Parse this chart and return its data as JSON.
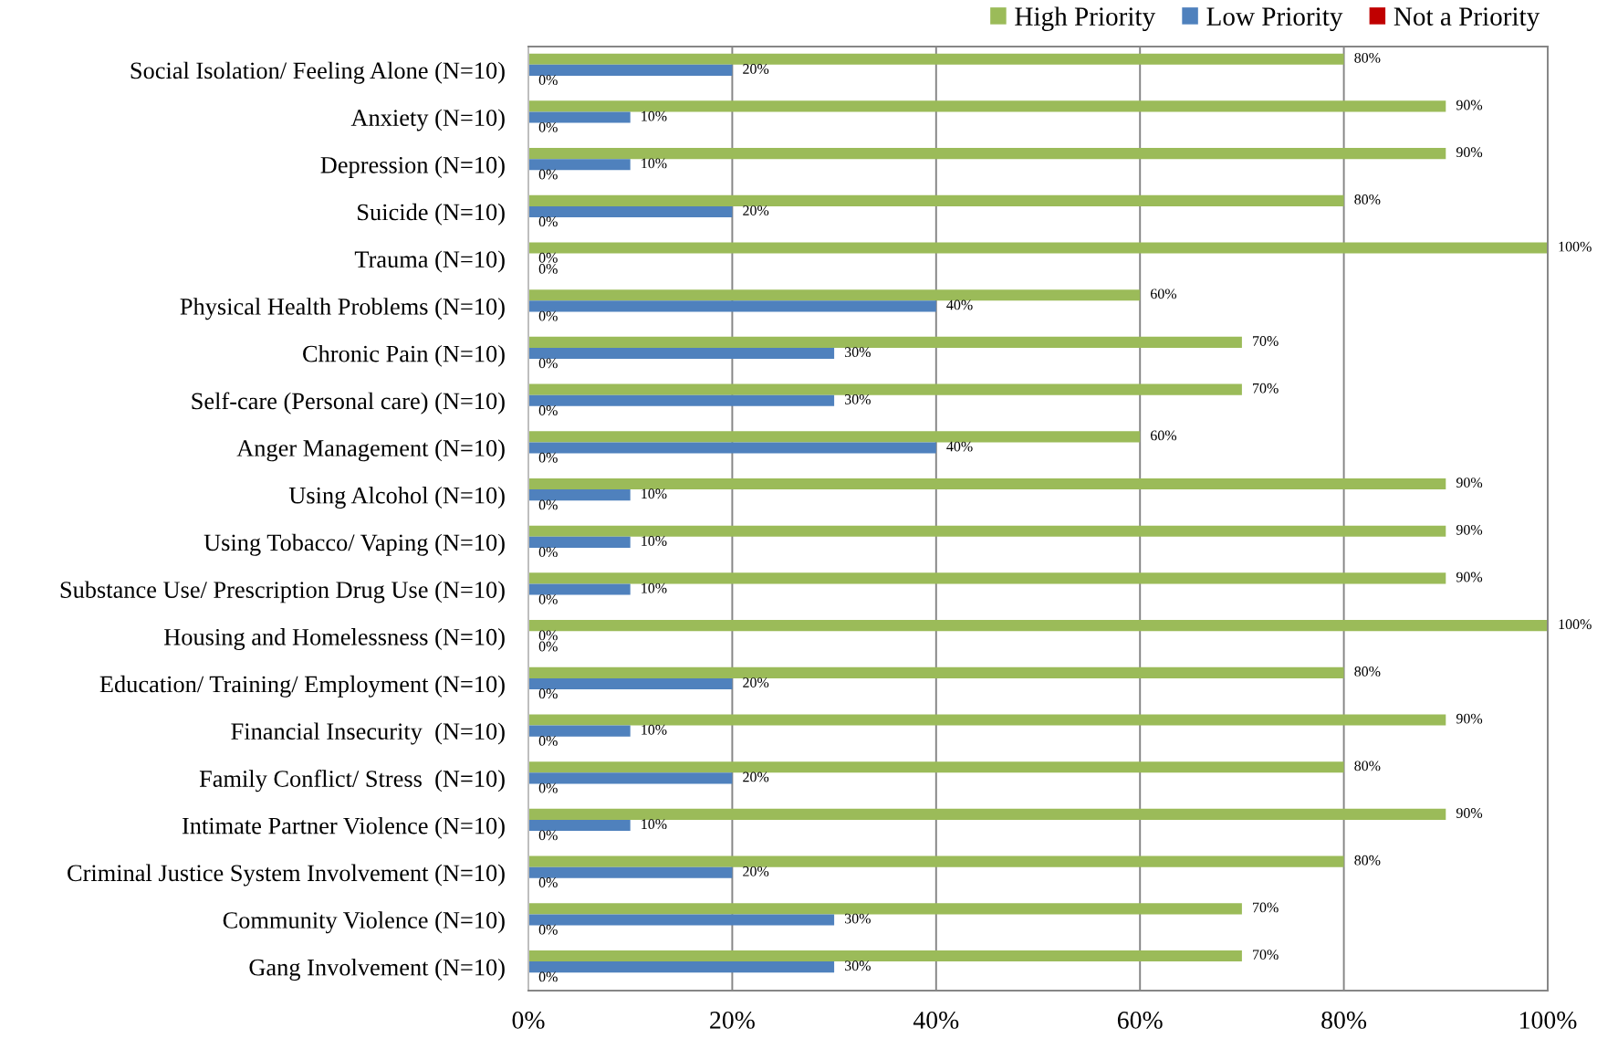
{
  "chart_data": {
    "type": "bar",
    "orientation": "horizontal",
    "categories": [
      "Social Isolation/ Feeling Alone (N=10)",
      "Anxiety (N=10)",
      "Depression (N=10)",
      "Suicide (N=10)",
      "Trauma (N=10)",
      "Physical Health Problems (N=10)",
      "Chronic Pain (N=10)",
      "Self-care (Personal care) (N=10)",
      "Anger Management (N=10)",
      "Using Alcohol (N=10)",
      "Using Tobacco/ Vaping (N=10)",
      "Substance Use/ Prescription Drug Use (N=10)",
      "Housing and Homelessness (N=10)",
      "Education/ Training/ Employment (N=10)",
      "Financial Insecurity  (N=10)",
      "Family Conflict/ Stress  (N=10)",
      "Intimate Partner Violence (N=10)",
      "Criminal Justice System Involvement (N=10)",
      "Community Violence (N=10)",
      "Gang Involvement (N=10)"
    ],
    "series": [
      {
        "name": "High Priority",
        "color": "#9bbb59",
        "values": [
          80,
          90,
          90,
          80,
          100,
          60,
          70,
          70,
          60,
          90,
          90,
          90,
          100,
          80,
          90,
          80,
          90,
          80,
          70,
          70
        ],
        "value_labels": [
          "80%",
          "90%",
          "90%",
          "80%",
          "100%",
          "60%",
          "70%",
          "70%",
          "60%",
          "90%",
          "90%",
          "90%",
          "100%",
          "80%",
          "90%",
          "80%",
          "90%",
          "80%",
          "70%",
          "70%"
        ]
      },
      {
        "name": "Low Priority",
        "color": "#4f81bd",
        "values": [
          20,
          10,
          10,
          20,
          0,
          40,
          30,
          30,
          40,
          10,
          10,
          10,
          0,
          20,
          10,
          20,
          10,
          20,
          30,
          30
        ],
        "value_labels": [
          "20%",
          "10%",
          "10%",
          "20%",
          "0%",
          "40%",
          "30%",
          "30%",
          "40%",
          "10%",
          "10%",
          "10%",
          "0%",
          "20%",
          "10%",
          "20%",
          "10%",
          "20%",
          "30%",
          "30%"
        ]
      },
      {
        "name": "Not a Priority",
        "color": "#c00000",
        "values": [
          0,
          0,
          0,
          0,
          0,
          0,
          0,
          0,
          0,
          0,
          0,
          0,
          0,
          0,
          0,
          0,
          0,
          0,
          0,
          0
        ],
        "value_labels": [
          "0%",
          "0%",
          "0%",
          "0%",
          "0%",
          "0%",
          "0%",
          "0%",
          "0%",
          "0%",
          "0%",
          "0%",
          "0%",
          "0%",
          "0%",
          "0%",
          "0%",
          "0%",
          "0%",
          "0%"
        ]
      }
    ],
    "xlim": [
      0,
      100
    ],
    "xticks": [
      {
        "value": 0,
        "label": "0%"
      },
      {
        "value": 20,
        "label": "20%"
      },
      {
        "value": 40,
        "label": "40%"
      },
      {
        "value": 60,
        "label": "60%"
      },
      {
        "value": 80,
        "label": "80%"
      },
      {
        "value": 100,
        "label": "100%"
      }
    ],
    "grid": "x",
    "legend": "top right"
  }
}
